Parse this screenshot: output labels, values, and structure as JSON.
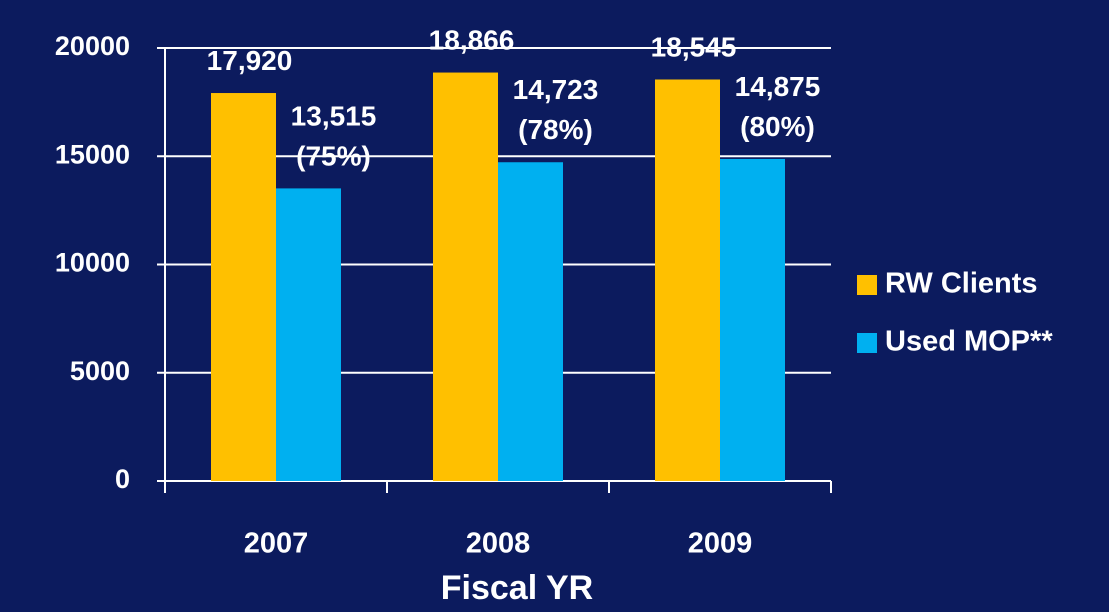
{
  "chart_data": {
    "type": "bar",
    "x_label": "Fiscal YR",
    "categories": [
      "2007",
      "2008",
      "2009"
    ],
    "series": [
      {
        "name": "RW Clients",
        "color": "#ffc000",
        "values": [
          17920,
          18866,
          18545
        ],
        "value_labels": [
          "17,920",
          "18,866",
          "18,545"
        ]
      },
      {
        "name": "Used MOP**",
        "color": "#00b0f0",
        "values": [
          13515,
          14723,
          14875
        ],
        "value_labels": [
          "13,515 (75%)",
          "14,723 (78%)",
          "14,875 (80%)"
        ]
      }
    ],
    "ylim": [
      0,
      20000
    ],
    "yticks": [
      0,
      5000,
      10000,
      15000,
      20000
    ],
    "grid": true,
    "legend": "right"
  }
}
